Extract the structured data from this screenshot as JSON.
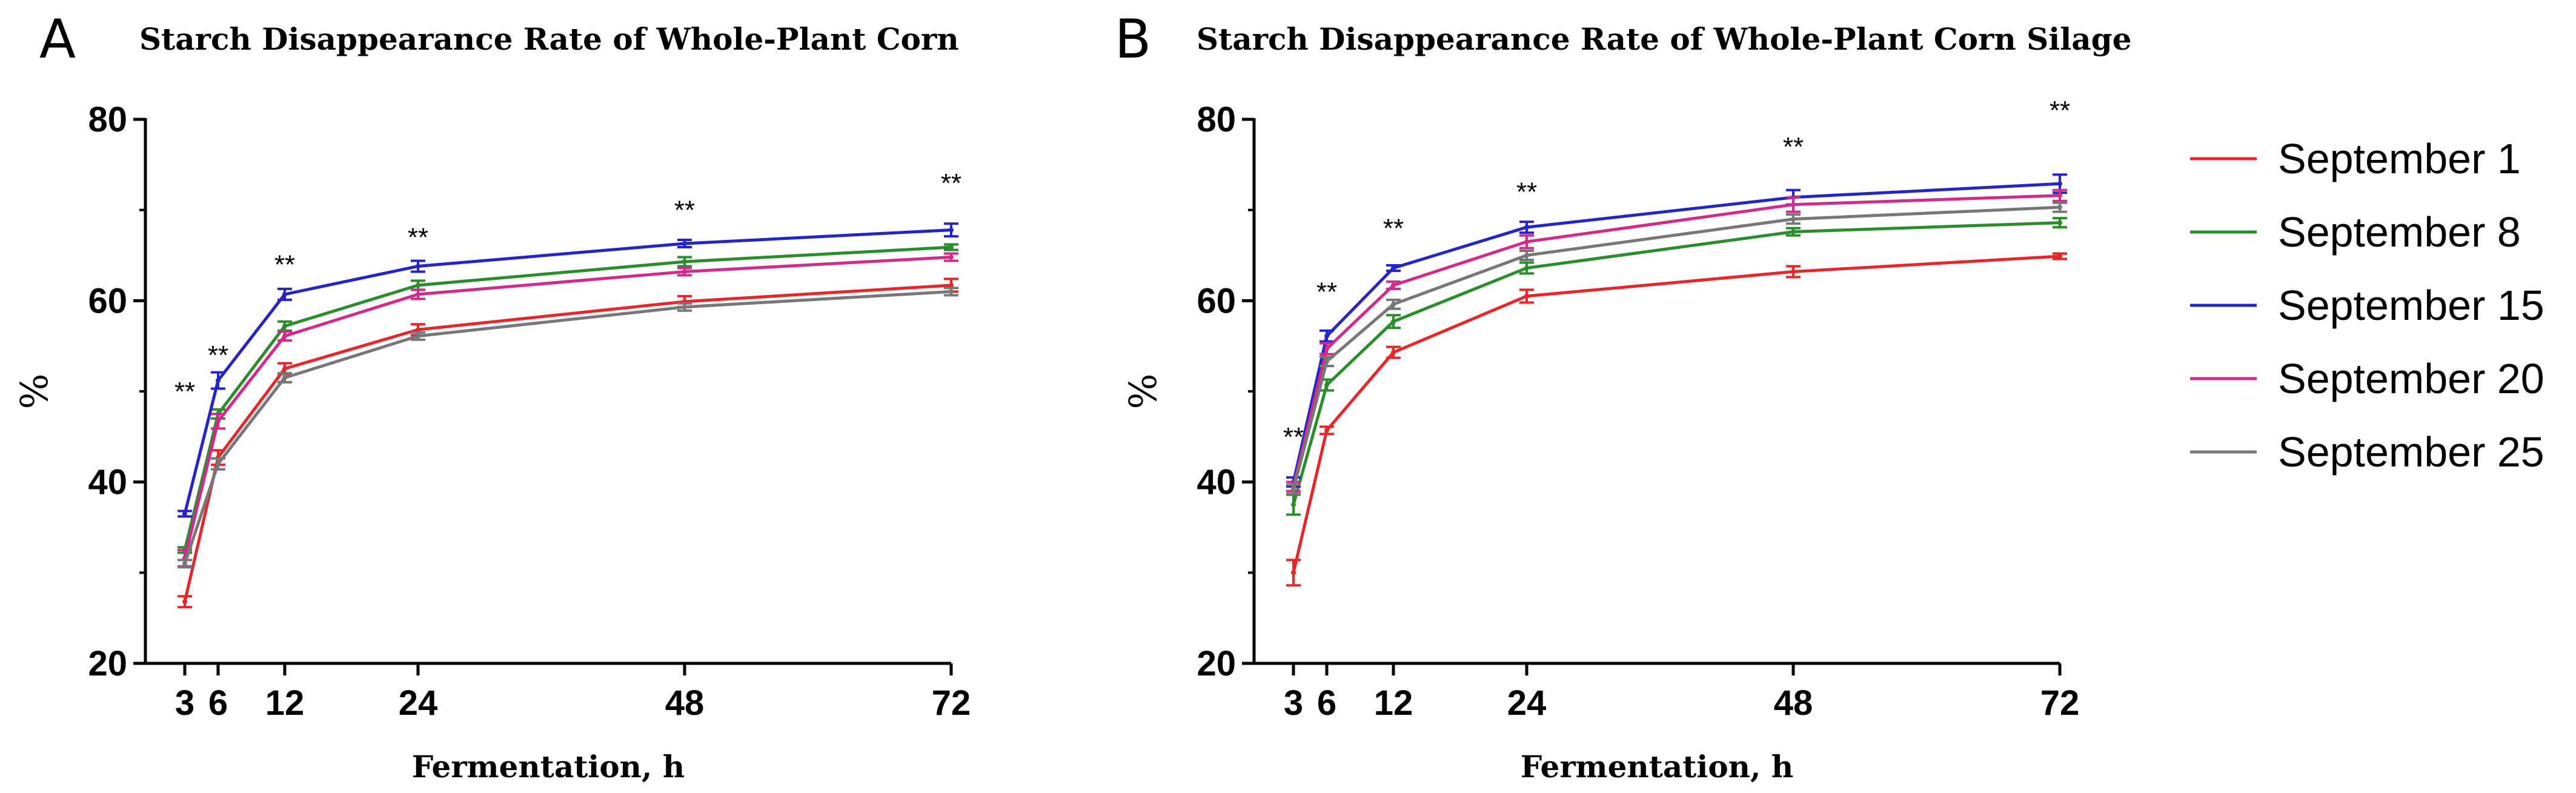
{
  "chart_data": [
    {
      "type": "line",
      "panel": "A",
      "title": "Starch Disappearance Rate of Whole-Plant Corn",
      "xlabel": "Fermentation, h",
      "ylabel": "%",
      "ylim": [
        20,
        80
      ],
      "yticks": [
        20,
        40,
        60,
        80
      ],
      "x": [
        3,
        6,
        12,
        24,
        48,
        72
      ],
      "xticks": [
        3,
        6,
        12,
        24,
        48,
        72
      ],
      "significance": [
        {
          "x": 3,
          "label": "**",
          "value": 50
        },
        {
          "x": 6,
          "label": "**",
          "value": 54
        },
        {
          "x": 12,
          "label": "**",
          "value": 64
        },
        {
          "x": 24,
          "label": "**",
          "value": 67
        },
        {
          "x": 48,
          "label": "**",
          "value": 70
        },
        {
          "x": 72,
          "label": "**",
          "value": 73
        }
      ],
      "series": [
        {
          "name": "September 1",
          "color": "#e8262a",
          "values": [
            26.8,
            42.7,
            52.5,
            56.8,
            59.9,
            61.7
          ],
          "errors": [
            0.6,
            0.8,
            0.6,
            0.6,
            0.6,
            0.7
          ]
        },
        {
          "name": "September 8",
          "color": "#2b8c2b",
          "values": [
            32.5,
            47.5,
            57.2,
            61.7,
            64.3,
            65.9
          ],
          "errors": [
            0.3,
            0.5,
            0.5,
            0.5,
            0.5,
            0.3
          ]
        },
        {
          "name": "September 15",
          "color": "#2424c8",
          "values": [
            36.5,
            51.2,
            60.7,
            63.8,
            66.3,
            67.8
          ],
          "errors": [
            0.3,
            0.9,
            0.6,
            0.6,
            0.4,
            0.7
          ]
        },
        {
          "name": "September 20",
          "color": "#d12a8a",
          "values": [
            31.6,
            46.7,
            56.1,
            60.7,
            63.2,
            64.8
          ],
          "errors": [
            0.9,
            0.8,
            0.5,
            0.5,
            0.4,
            0.4
          ]
        },
        {
          "name": "September 25",
          "color": "#777777",
          "values": [
            31.0,
            42.0,
            51.5,
            56.1,
            59.3,
            61.0
          ],
          "errors": [
            0.4,
            0.6,
            0.5,
            0.4,
            0.4,
            0.4
          ]
        }
      ]
    },
    {
      "type": "line",
      "panel": "B",
      "title": "Starch Disappearance Rate of Whole-Plant Corn Silage",
      "xlabel": "Fermentation, h",
      "ylabel": "%",
      "ylim": [
        20,
        80
      ],
      "yticks": [
        20,
        40,
        60,
        80
      ],
      "x": [
        3,
        6,
        12,
        24,
        48,
        72
      ],
      "xticks": [
        3,
        6,
        12,
        24,
        48,
        72
      ],
      "significance": [
        {
          "x": 3,
          "label": "**",
          "value": 45
        },
        {
          "x": 6,
          "label": "**",
          "value": 61
        },
        {
          "x": 12,
          "label": "**",
          "value": 68
        },
        {
          "x": 24,
          "label": "**",
          "value": 72
        },
        {
          "x": 48,
          "label": "**",
          "value": 77
        },
        {
          "x": 72,
          "label": "**",
          "value": 81
        }
      ],
      "series": [
        {
          "name": "September 1",
          "color": "#e8262a",
          "values": [
            30.0,
            45.7,
            54.3,
            60.5,
            63.2,
            64.9
          ],
          "errors": [
            1.4,
            0.4,
            0.6,
            0.7,
            0.6,
            0.3
          ]
        },
        {
          "name": "September 8",
          "color": "#2b8c2b",
          "values": [
            37.5,
            50.7,
            57.7,
            63.6,
            67.6,
            68.6
          ],
          "errors": [
            1.1,
            0.6,
            0.7,
            0.6,
            0.4,
            0.5
          ]
        },
        {
          "name": "September 15",
          "color": "#2424c8",
          "values": [
            40.0,
            56.1,
            63.6,
            68.1,
            71.4,
            72.9
          ],
          "errors": [
            0.5,
            0.6,
            0.3,
            0.6,
            0.8,
            1.0
          ]
        },
        {
          "name": "September 20",
          "color": "#d12a8a",
          "values": [
            39.5,
            54.7,
            61.7,
            66.5,
            70.6,
            71.6
          ],
          "errors": [
            0.5,
            0.6,
            0.4,
            0.7,
            0.8,
            0.6
          ]
        },
        {
          "name": "September 25",
          "color": "#777777",
          "values": [
            39.2,
            53.3,
            59.6,
            65.0,
            69.0,
            70.3
          ],
          "errors": [
            0.5,
            0.5,
            0.5,
            0.5,
            0.5,
            0.5
          ]
        }
      ]
    }
  ],
  "legend": {
    "entries": [
      {
        "name": "September 1",
        "color": "#e8262a"
      },
      {
        "name": "September 8",
        "color": "#2b8c2b"
      },
      {
        "name": "September 15",
        "color": "#2424c8"
      },
      {
        "name": "September 20",
        "color": "#d12a8a"
      },
      {
        "name": "September 25",
        "color": "#777777"
      }
    ]
  }
}
